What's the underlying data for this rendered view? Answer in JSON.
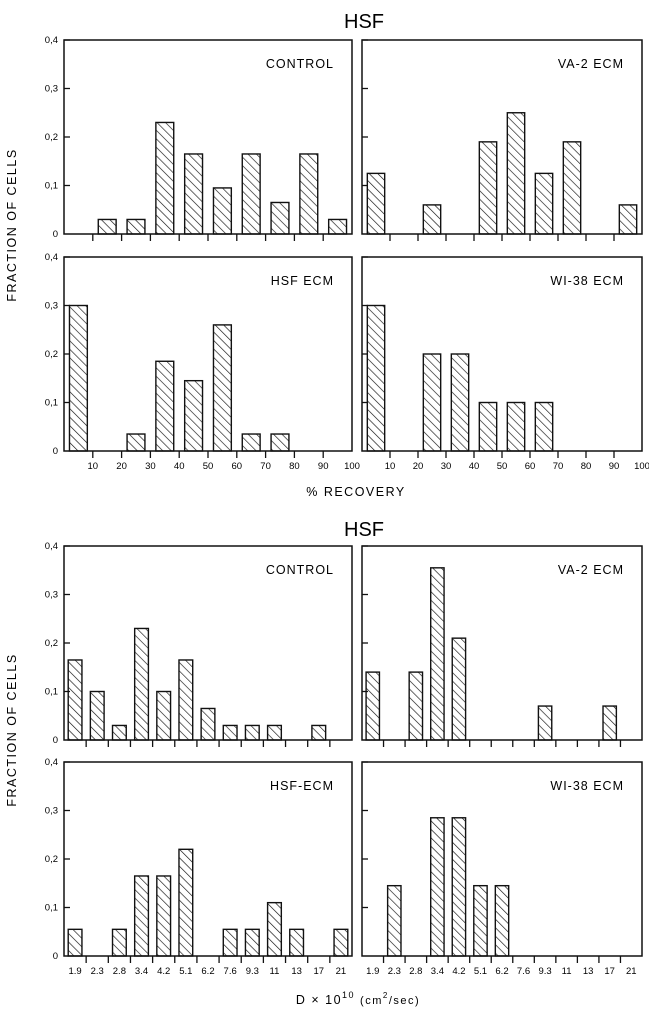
{
  "figure_a": {
    "title": "HSF",
    "ylabel": "FRACTION OF CELLS",
    "xlabel": "% RECOVERY"
  },
  "figure_b": {
    "title": "HSF",
    "ylabel": "FRACTION OF CELLS",
    "xlabel_main": "D × 10",
    "xlabel_exp": "10",
    "xlabel_units": "(cm",
    "xlabel_units_exp": "2",
    "xlabel_units_end": "/sec)"
  },
  "chart_data": [
    {
      "type": "bar",
      "figure": "top",
      "panel": "CONTROL",
      "categories": [
        "10",
        "20",
        "30",
        "40",
        "50",
        "60",
        "70",
        "80",
        "90",
        "100"
      ],
      "values": [
        0,
        0.03,
        0.03,
        0.23,
        0.165,
        0.095,
        0.165,
        0.065,
        0.165,
        0.03
      ],
      "ylim": [
        0,
        0.4
      ],
      "yticks": [
        "0",
        "0,1",
        "0,2",
        "0,3",
        "0,4"
      ]
    },
    {
      "type": "bar",
      "figure": "top",
      "panel": "VA-2 ECM",
      "categories": [
        "10",
        "20",
        "30",
        "40",
        "50",
        "60",
        "70",
        "80",
        "90",
        "100"
      ],
      "values": [
        0.125,
        0,
        0.06,
        0,
        0.19,
        0.25,
        0.125,
        0.19,
        0,
        0.06
      ],
      "ylim": [
        0,
        0.4
      ]
    },
    {
      "type": "bar",
      "figure": "top",
      "panel": "HSF ECM",
      "categories": [
        "10",
        "20",
        "30",
        "40",
        "50",
        "60",
        "70",
        "80",
        "90",
        "100"
      ],
      "values": [
        0.3,
        0,
        0.035,
        0.185,
        0.145,
        0.26,
        0.035,
        0.035,
        0,
        0
      ],
      "ylim": [
        0,
        0.4
      ],
      "yticks": [
        "0",
        "0,1",
        "0,2",
        "0,3",
        "0,4"
      ],
      "xticks": [
        "10",
        "20",
        "30",
        "40",
        "50",
        "60",
        "70",
        "80",
        "90",
        "100"
      ]
    },
    {
      "type": "bar",
      "figure": "top",
      "panel": "WI-38 ECM",
      "categories": [
        "10",
        "20",
        "30",
        "40",
        "50",
        "60",
        "70",
        "80",
        "90",
        "100"
      ],
      "values": [
        0.3,
        0,
        0.2,
        0.2,
        0.1,
        0.1,
        0.1,
        0,
        0,
        0
      ],
      "ylim": [
        0,
        0.4
      ],
      "xticks": [
        "10",
        "20",
        "30",
        "40",
        "50",
        "60",
        "70",
        "80",
        "90",
        "100"
      ]
    },
    {
      "type": "bar",
      "figure": "bottom",
      "panel": "CONTROL",
      "categories": [
        "1.9",
        "2.3",
        "2.8",
        "3.4",
        "4.2",
        "5.1",
        "6.2",
        "7.6",
        "9.3",
        "11",
        "13",
        "17",
        "21"
      ],
      "values": [
        0.165,
        0.1,
        0.03,
        0.23,
        0.1,
        0.165,
        0.065,
        0.03,
        0.03,
        0.03,
        0,
        0.03,
        0
      ],
      "ylim": [
        0,
        0.4
      ],
      "yticks": [
        "0",
        "0,1",
        "0,2",
        "0,3",
        "0,4"
      ]
    },
    {
      "type": "bar",
      "figure": "bottom",
      "panel": "VA-2 ECM",
      "categories": [
        "1.9",
        "2.3",
        "2.8",
        "3.4",
        "4.2",
        "5.1",
        "6.2",
        "7.6",
        "9.3",
        "11",
        "13",
        "17",
        "21"
      ],
      "values": [
        0.14,
        0,
        0.14,
        0.355,
        0.21,
        0,
        0,
        0,
        0.07,
        0,
        0,
        0.07,
        0
      ],
      "ylim": [
        0,
        0.4
      ]
    },
    {
      "type": "bar",
      "figure": "bottom",
      "panel": "HSF-ECM",
      "categories": [
        "1.9",
        "2.3",
        "2.8",
        "3.4",
        "4.2",
        "5.1",
        "6.2",
        "7.6",
        "9.3",
        "11",
        "13",
        "17",
        "21"
      ],
      "values": [
        0.055,
        0,
        0.055,
        0.165,
        0.165,
        0.22,
        0,
        0.055,
        0.055,
        0.11,
        0.055,
        0,
        0.055
      ],
      "ylim": [
        0,
        0.4
      ],
      "yticks": [
        "0",
        "0,1",
        "0,2",
        "0,3",
        "0,4"
      ],
      "xticks": [
        "1.9",
        "2.3",
        "2.8",
        "3.4",
        "4.2",
        "5.1",
        "6.2",
        "7.6",
        "9.3",
        "11",
        "13",
        "17",
        "21"
      ]
    },
    {
      "type": "bar",
      "figure": "bottom",
      "panel": "WI-38 ECM",
      "categories": [
        "1.9",
        "2.3",
        "2.8",
        "3.4",
        "4.2",
        "5.1",
        "6.2",
        "7.6",
        "9.3",
        "11",
        "13",
        "17",
        "21"
      ],
      "values": [
        0,
        0.145,
        0,
        0.285,
        0.285,
        0.145,
        0.145,
        0,
        0,
        0,
        0,
        0,
        0
      ],
      "ylim": [
        0,
        0.4
      ],
      "xticks": [
        "1.9",
        "2.3",
        "2.8",
        "3.4",
        "4.2",
        "5.1",
        "6.2",
        "7.6",
        "9.3",
        "11",
        "13",
        "17",
        "21"
      ]
    }
  ]
}
